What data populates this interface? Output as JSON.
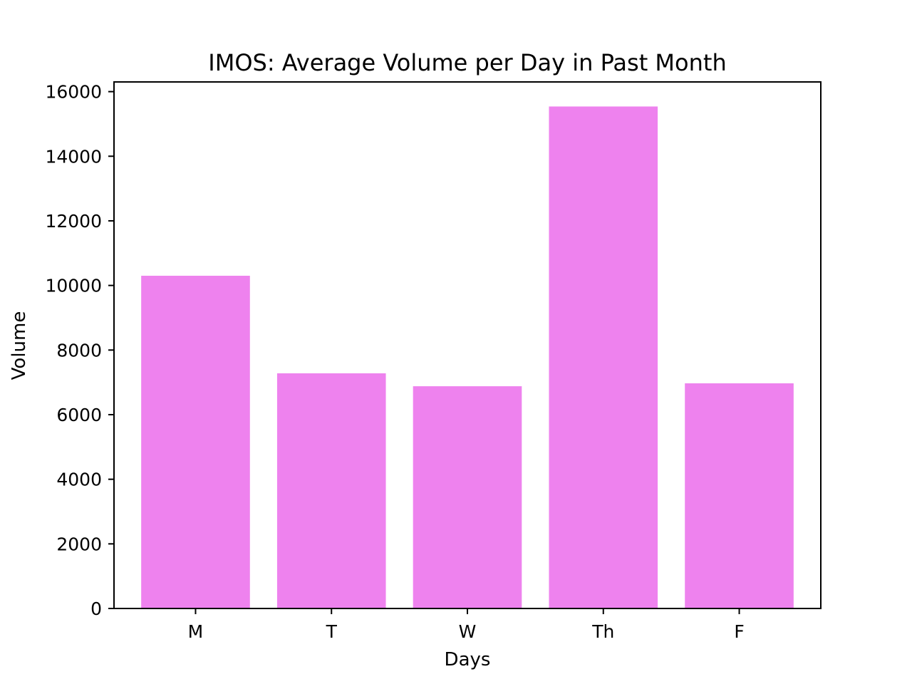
{
  "chart_data": {
    "type": "bar",
    "title": "IMOS: Average Volume per Day in Past Month",
    "xlabel": "Days",
    "ylabel": "Volume",
    "categories": [
      "M",
      "T",
      "W",
      "Th",
      "F"
    ],
    "values": [
      10300,
      7280,
      6880,
      15540,
      6970
    ],
    "ylim": [
      0,
      16300
    ],
    "yticks": [
      0,
      2000,
      4000,
      6000,
      8000,
      10000,
      12000,
      14000,
      16000
    ],
    "bar_color": "#ee82ee",
    "grid": false,
    "legend": "none"
  }
}
